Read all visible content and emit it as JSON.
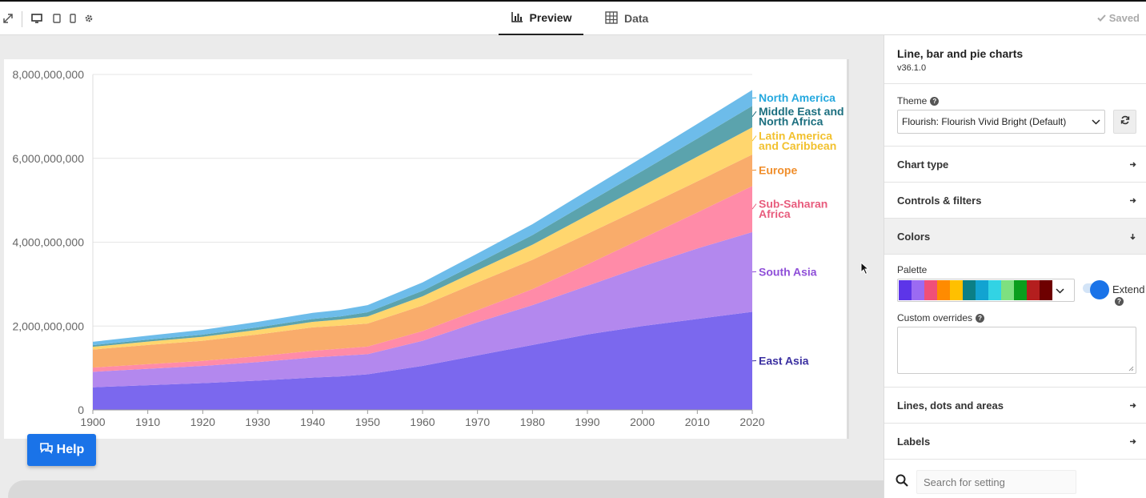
{
  "toolbar": {
    "tabs": [
      {
        "label": "Preview",
        "icon": "bar-chart-icon",
        "active": true
      },
      {
        "label": "Data",
        "icon": "table-grid-icon",
        "active": false
      }
    ],
    "status": "Saved"
  },
  "help_label": "Help",
  "panel": {
    "title": "Line, bar and pie charts",
    "version": "v36.1.0",
    "theme_label": "Theme",
    "theme_value": "Flourish: Flourish Vivid Bright (Default)",
    "sections": {
      "chart_type": "Chart type",
      "controls": "Controls & filters",
      "colors": "Colors",
      "lines": "Lines, dots and areas",
      "labels": "Labels"
    },
    "palette_label": "Palette",
    "palette_colors": [
      "#5d35e8",
      "#9b6bf2",
      "#f04f78",
      "#ff8b00",
      "#ffc000",
      "#0b7f86",
      "#12a3d1",
      "#32d3e4",
      "#7ee080",
      "#0a9e1d",
      "#b41e1e",
      "#6e0000"
    ],
    "extend_label": "Extend",
    "custom_overrides_label": "Custom overrides",
    "search_placeholder": "Search for setting"
  },
  "chart_data": {
    "type": "area",
    "stacked": true,
    "x": [
      1900,
      1910,
      1920,
      1930,
      1940,
      1945,
      1950,
      1960,
      1970,
      1980,
      1990,
      2000,
      2010,
      2020
    ],
    "xlim": [
      1900,
      2020
    ],
    "ylim": [
      0,
      8000000000
    ],
    "y_ticks": [
      "0",
      "2,000,000,000",
      "4,000,000,000",
      "6,000,000,000",
      "8,000,000,000"
    ],
    "x_ticks": [
      "1900",
      "1910",
      "1920",
      "1930",
      "1940",
      "1950",
      "1960",
      "1970",
      "1980",
      "1990",
      "2000",
      "2010",
      "2020"
    ],
    "grid": true,
    "legend": "labels at series ends",
    "series": [
      {
        "name": "East Asia",
        "color": "#7b68ee",
        "values": [
          540000000,
          590000000,
          640000000,
          700000000,
          770000000,
          800000000,
          850000000,
          1050000000,
          1300000000,
          1550000000,
          1800000000,
          2000000000,
          2170000000,
          2340000000
        ]
      },
      {
        "name": "South Asia",
        "color": "#b388ee",
        "values": [
          370000000,
          390000000,
          410000000,
          440000000,
          480000000,
          490000000,
          480000000,
          600000000,
          790000000,
          950000000,
          1160000000,
          1420000000,
          1680000000,
          1900000000
        ]
      },
      {
        "name": "Sub-Saharan Africa",
        "color": "#ff8ba8",
        "values": [
          100000000,
          110000000,
          120000000,
          140000000,
          160000000,
          170000000,
          180000000,
          230000000,
          290000000,
          380000000,
          510000000,
          670000000,
          860000000,
          1100000000
        ]
      },
      {
        "name": "Europe",
        "color": "#f9ac6b",
        "values": [
          430000000,
          460000000,
          480000000,
          520000000,
          560000000,
          550000000,
          550000000,
          610000000,
          660000000,
          700000000,
          730000000,
          730000000,
          740000000,
          750000000
        ]
      },
      {
        "name": "Latin America and Caribbean",
        "color": "#ffd66e",
        "values": [
          65000000,
          80000000,
          95000000,
          110000000,
          130000000,
          145000000,
          170000000,
          220000000,
          290000000,
          360000000,
          440000000,
          520000000,
          590000000,
          650000000
        ]
      },
      {
        "name": "Middle East and North Africa",
        "color": "#5ba3ad",
        "values": [
          40000000,
          45000000,
          50000000,
          60000000,
          70000000,
          75000000,
          100000000,
          130000000,
          170000000,
          230000000,
          300000000,
          360000000,
          430000000,
          510000000
        ]
      },
      {
        "name": "North America",
        "color": "#6dbcea",
        "values": [
          80000000,
          95000000,
          115000000,
          130000000,
          145000000,
          155000000,
          170000000,
          200000000,
          230000000,
          260000000,
          290000000,
          320000000,
          350000000,
          380000000
        ]
      }
    ],
    "series_labels": [
      {
        "lines": [
          "North America"
        ],
        "color": "#26a9df"
      },
      {
        "lines": [
          "Middle East and",
          "North Africa"
        ],
        "color": "#1c6f7f"
      },
      {
        "lines": [
          "Latin America",
          "and Caribbean"
        ],
        "color": "#f2c12e"
      },
      {
        "lines": [
          "Europe"
        ],
        "color": "#f08e2b"
      },
      {
        "lines": [
          "Sub-Saharan",
          "Africa"
        ],
        "color": "#e85c7d"
      },
      {
        "lines": [
          "South Asia"
        ],
        "color": "#8f4fd8"
      },
      {
        "lines": [
          "East Asia"
        ],
        "color": "#3a2fa0"
      }
    ]
  }
}
